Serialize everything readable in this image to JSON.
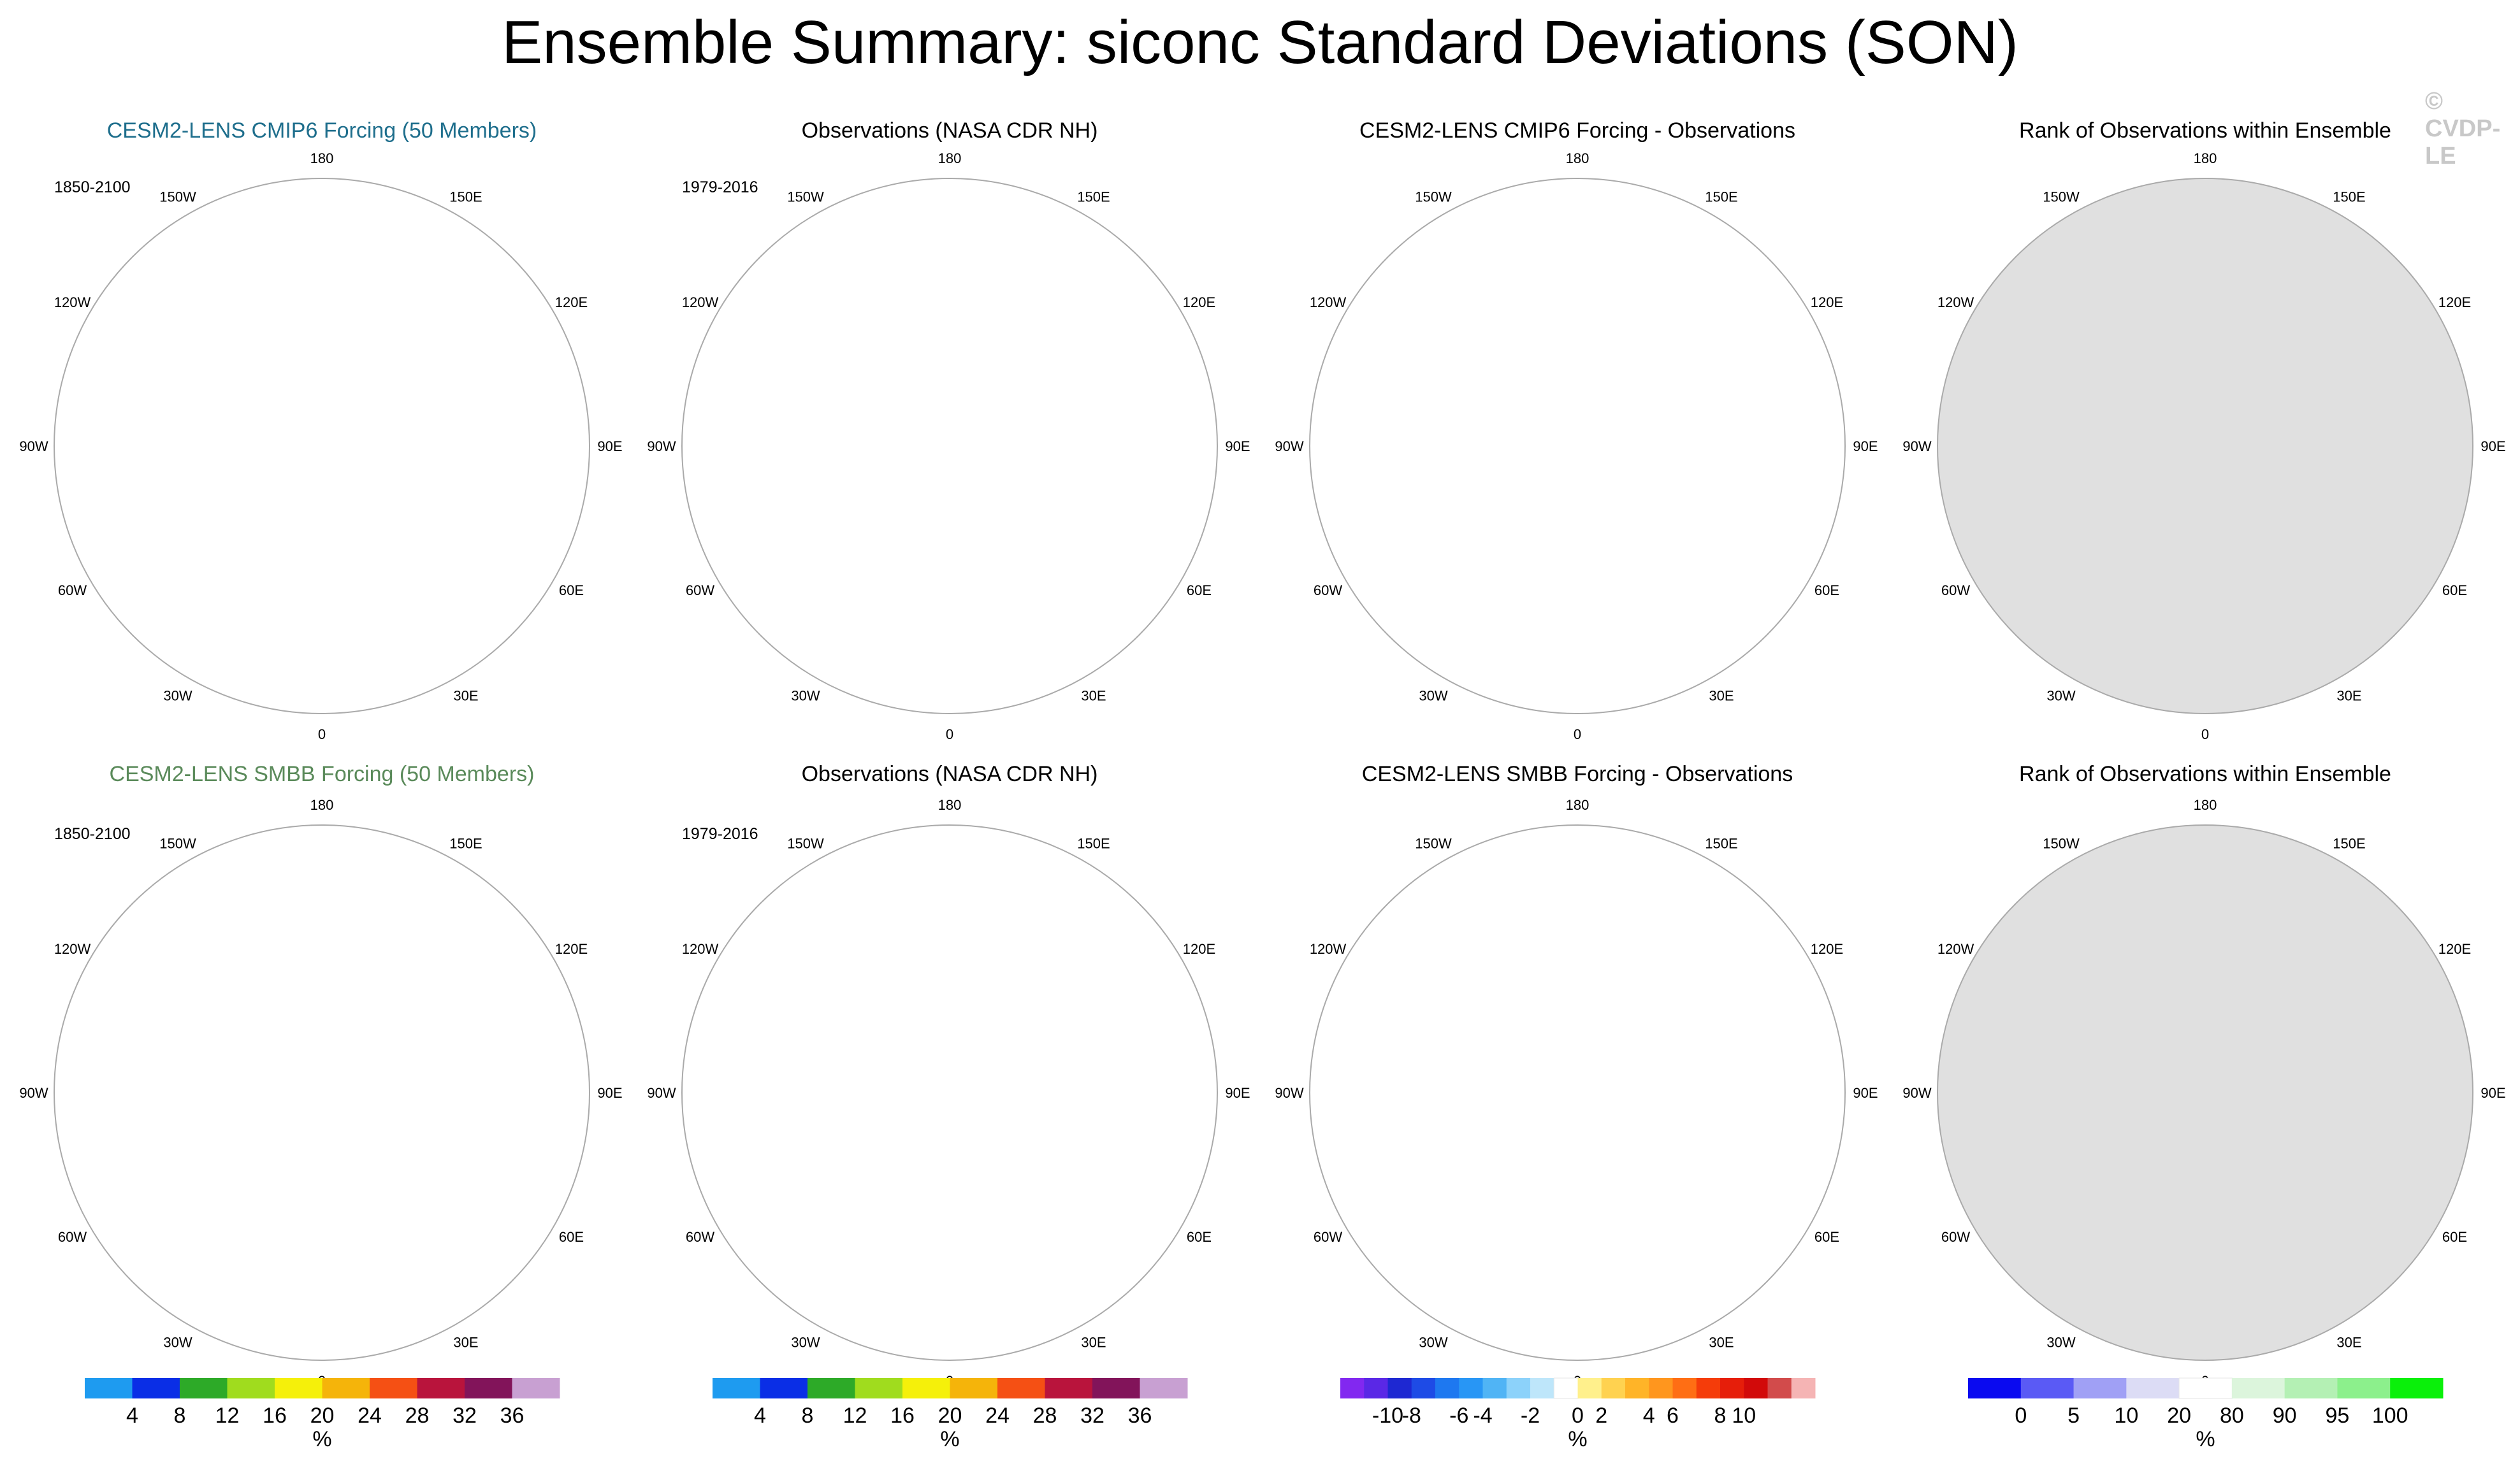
{
  "title": "Ensemble Summary: siconc Standard Deviations (SON)",
  "watermark": "© CVDP-LE",
  "colors": {
    "ocean": "#ffffff",
    "land": "#bdbdbd",
    "rank_background": "#e0e0e0",
    "cmip6_title": "#1e6e8c",
    "smbb_title": "#5a8a5a"
  },
  "longitude_labels": [
    "180",
    "150E",
    "120E",
    "90E",
    "60E",
    "30E",
    "0",
    "30W",
    "60W",
    "90W",
    "120W",
    "150W"
  ],
  "panels": [
    {
      "row": 0,
      "col": 0,
      "title": "CESM2-LENS CMIP6 Forcing (50 Members)",
      "period": "1850-2100",
      "kind": "ens",
      "title_color": "#1e6e8c"
    },
    {
      "row": 0,
      "col": 1,
      "title": "Observations (NASA CDR NH)",
      "period": "1979-2016",
      "kind": "obs",
      "title_color": "#000000"
    },
    {
      "row": 0,
      "col": 2,
      "title": "CESM2-LENS CMIP6 Forcing - Observations",
      "period": "",
      "kind": "diff",
      "title_color": "#000000"
    },
    {
      "row": 0,
      "col": 3,
      "title": "Rank of Observations within Ensemble",
      "period": "",
      "kind": "rank",
      "title_color": "#000000"
    },
    {
      "row": 1,
      "col": 0,
      "title": "CESM2-LENS SMBB Forcing (50 Members)",
      "period": "1850-2100",
      "kind": "ens",
      "title_color": "#5a8a5a"
    },
    {
      "row": 1,
      "col": 1,
      "title": "Observations (NASA CDR NH)",
      "period": "1979-2016",
      "kind": "obs",
      "title_color": "#000000"
    },
    {
      "row": 1,
      "col": 2,
      "title": "CESM2-LENS SMBB Forcing - Observations",
      "period": "",
      "kind": "diff",
      "title_color": "#000000"
    },
    {
      "row": 1,
      "col": 3,
      "title": "Rank of Observations within Ensemble",
      "period": "",
      "kind": "rank",
      "title_color": "#000000"
    }
  ],
  "chart_data": {
    "type": "heatmap",
    "projection": "north polar stereographic",
    "variable": "siconc standard deviation",
    "season": "SON",
    "colorbars": [
      {
        "col": 0,
        "unit": "%",
        "ticks": [
          "4",
          "8",
          "12",
          "16",
          "20",
          "24",
          "28",
          "32",
          "36"
        ],
        "colors": [
          "#1e9bf0",
          "#0a2ee6",
          "#2daa28",
          "#a0dc1e",
          "#f5f00a",
          "#f5b40a",
          "#f55014",
          "#b9143c",
          "#82145a",
          "#c8a0d2"
        ]
      },
      {
        "col": 1,
        "unit": "%",
        "ticks": [
          "4",
          "8",
          "12",
          "16",
          "20",
          "24",
          "28",
          "32",
          "36"
        ],
        "colors": [
          "#1e9bf0",
          "#0a2ee6",
          "#2daa28",
          "#a0dc1e",
          "#f5f00a",
          "#f5b40a",
          "#f55014",
          "#b9143c",
          "#82145a",
          "#c8a0d2"
        ]
      },
      {
        "col": 2,
        "unit": "%",
        "ticks": [
          "-10",
          "-8",
          "-6",
          "-4",
          "-2",
          "0",
          "2",
          "4",
          "6",
          "8",
          "10"
        ],
        "colors": [
          "#8228f0",
          "#5a28e6",
          "#1e28d2",
          "#1e4be6",
          "#1e78f0",
          "#2896f5",
          "#50b4f5",
          "#8cd2fa",
          "#bee6fa",
          "#ffffff",
          "#fff08c",
          "#ffd250",
          "#ffb428",
          "#ff961e",
          "#ff6e14",
          "#f53c0a",
          "#e61e0a",
          "#d20a0a",
          "#d24b4b",
          "#f5b4b4"
        ]
      },
      {
        "col": 3,
        "unit": "%",
        "ticks": [
          "0",
          "5",
          "10",
          "20",
          "80",
          "90",
          "95",
          "100"
        ],
        "colors": [
          "#0a0af0",
          "#5a5af5",
          "#a0a0f5",
          "#dcdcf5",
          "#ffffff",
          "#dcf5dc",
          "#b4f0b4",
          "#8cf08c",
          "#0af00a"
        ]
      }
    ]
  }
}
